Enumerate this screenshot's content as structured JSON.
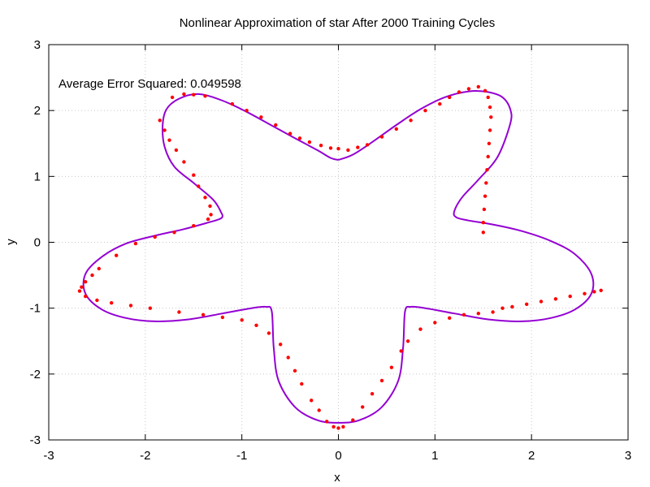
{
  "chart_data": {
    "type": "scatter",
    "title": "Nonlinear Approximation of star After 2000 Training Cycles",
    "xlabel": "x",
    "ylabel": "y",
    "xlim": [
      -3,
      3
    ],
    "ylim": [
      -3,
      3
    ],
    "xticks": [
      -3,
      -2,
      -1,
      0,
      1,
      2,
      3
    ],
    "yticks": [
      -3,
      -2,
      -1,
      0,
      1,
      2,
      3
    ],
    "grid": true,
    "annotation": "Average Error Squared: 0.049598",
    "series": [
      {
        "kind": "line",
        "color": "#9400d3",
        "points": [
          [
            0.0,
            1.25
          ],
          [
            0.15,
            1.33
          ],
          [
            0.35,
            1.52
          ],
          [
            0.6,
            1.78
          ],
          [
            0.85,
            2.02
          ],
          [
            1.1,
            2.2
          ],
          [
            1.35,
            2.29
          ],
          [
            1.55,
            2.28
          ],
          [
            1.7,
            2.2
          ],
          [
            1.78,
            2.02
          ],
          [
            1.78,
            1.8
          ],
          [
            1.65,
            1.3
          ],
          [
            1.45,
            0.95
          ],
          [
            1.28,
            0.68
          ],
          [
            1.2,
            0.47
          ],
          [
            1.22,
            0.38
          ],
          [
            1.35,
            0.33
          ],
          [
            1.6,
            0.27
          ],
          [
            1.9,
            0.17
          ],
          [
            2.2,
            0.02
          ],
          [
            2.45,
            -0.18
          ],
          [
            2.62,
            -0.48
          ],
          [
            2.62,
            -0.78
          ],
          [
            2.45,
            -1.02
          ],
          [
            2.2,
            -1.15
          ],
          [
            1.9,
            -1.2
          ],
          [
            1.55,
            -1.17
          ],
          [
            1.2,
            -1.08
          ],
          [
            0.9,
            -1.0
          ],
          [
            0.75,
            -0.98
          ],
          [
            0.69,
            -1.05
          ],
          [
            0.67,
            -1.6
          ],
          [
            0.62,
            -2.1
          ],
          [
            0.45,
            -2.5
          ],
          [
            0.22,
            -2.7
          ],
          [
            0.0,
            -2.74
          ],
          [
            -0.22,
            -2.7
          ],
          [
            -0.45,
            -2.5
          ],
          [
            -0.62,
            -2.1
          ],
          [
            -0.67,
            -1.6
          ],
          [
            -0.69,
            -1.05
          ],
          [
            -0.75,
            -0.98
          ],
          [
            -0.9,
            -1.0
          ],
          [
            -1.2,
            -1.08
          ],
          [
            -1.55,
            -1.17
          ],
          [
            -1.9,
            -1.2
          ],
          [
            -2.2,
            -1.15
          ],
          [
            -2.45,
            -1.02
          ],
          [
            -2.62,
            -0.78
          ],
          [
            -2.62,
            -0.48
          ],
          [
            -2.45,
            -0.22
          ],
          [
            -2.2,
            -0.02
          ],
          [
            -1.9,
            0.1
          ],
          [
            -1.6,
            0.2
          ],
          [
            -1.35,
            0.3
          ],
          [
            -1.21,
            0.37
          ],
          [
            -1.22,
            0.47
          ],
          [
            -1.3,
            0.65
          ],
          [
            -1.5,
            0.9
          ],
          [
            -1.7,
            1.15
          ],
          [
            -1.8,
            1.45
          ],
          [
            -1.82,
            1.78
          ],
          [
            -1.78,
            2.02
          ],
          [
            -1.65,
            2.18
          ],
          [
            -1.45,
            2.25
          ],
          [
            -1.2,
            2.15
          ],
          [
            -0.95,
            1.98
          ],
          [
            -0.7,
            1.78
          ],
          [
            -0.45,
            1.58
          ],
          [
            -0.22,
            1.4
          ],
          [
            -0.08,
            1.28
          ],
          [
            0.0,
            1.25
          ]
        ]
      },
      {
        "kind": "points",
        "color": "#ff0000",
        "points": [
          [
            -1.72,
            2.2
          ],
          [
            -1.6,
            2.25
          ],
          [
            -1.5,
            2.24
          ],
          [
            -1.38,
            2.22
          ],
          [
            -1.1,
            2.1
          ],
          [
            -0.95,
            2.0
          ],
          [
            -0.8,
            1.9
          ],
          [
            -0.65,
            1.78
          ],
          [
            -0.5,
            1.65
          ],
          [
            -0.4,
            1.58
          ],
          [
            -0.3,
            1.52
          ],
          [
            -0.18,
            1.47
          ],
          [
            -0.08,
            1.43
          ],
          [
            0.0,
            1.42
          ],
          [
            0.1,
            1.4
          ],
          [
            0.2,
            1.44
          ],
          [
            0.3,
            1.48
          ],
          [
            0.45,
            1.6
          ],
          [
            0.6,
            1.72
          ],
          [
            0.75,
            1.85
          ],
          [
            0.9,
            2.0
          ],
          [
            1.05,
            2.1
          ],
          [
            1.15,
            2.2
          ],
          [
            1.25,
            2.28
          ],
          [
            1.35,
            2.33
          ],
          [
            1.45,
            2.36
          ],
          [
            1.52,
            2.3
          ],
          [
            1.55,
            2.2
          ],
          [
            1.57,
            2.05
          ],
          [
            1.58,
            1.9
          ],
          [
            1.57,
            1.7
          ],
          [
            1.56,
            1.5
          ],
          [
            1.55,
            1.3
          ],
          [
            1.54,
            1.1
          ],
          [
            1.53,
            0.9
          ],
          [
            1.52,
            0.7
          ],
          [
            1.51,
            0.5
          ],
          [
            1.5,
            0.3
          ],
          [
            1.5,
            0.15
          ],
          [
            -1.85,
            1.85
          ],
          [
            -1.8,
            1.7
          ],
          [
            -1.75,
            1.55
          ],
          [
            -1.68,
            1.4
          ],
          [
            -1.6,
            1.22
          ],
          [
            -1.5,
            1.02
          ],
          [
            -1.45,
            0.85
          ],
          [
            -1.38,
            0.68
          ],
          [
            -1.33,
            0.55
          ],
          [
            -1.32,
            0.42
          ],
          [
            -1.35,
            0.35
          ],
          [
            -1.5,
            0.25
          ],
          [
            -1.7,
            0.15
          ],
          [
            -1.9,
            0.08
          ],
          [
            -2.1,
            -0.02
          ],
          [
            -2.3,
            -0.2
          ],
          [
            -2.48,
            -0.4
          ],
          [
            -2.55,
            -0.5
          ],
          [
            -2.62,
            -0.6
          ],
          [
            -2.66,
            -0.68
          ],
          [
            -2.68,
            -0.74
          ],
          [
            -2.62,
            -0.82
          ],
          [
            -2.5,
            -0.88
          ],
          [
            -2.35,
            -0.92
          ],
          [
            -2.15,
            -0.96
          ],
          [
            -1.95,
            -1.0
          ],
          [
            -1.65,
            -1.06
          ],
          [
            -1.4,
            -1.1
          ],
          [
            -1.2,
            -1.14
          ],
          [
            -1.0,
            -1.18
          ],
          [
            -0.85,
            -1.26
          ],
          [
            -0.72,
            -1.38
          ],
          [
            -0.6,
            -1.55
          ],
          [
            -0.52,
            -1.75
          ],
          [
            -0.45,
            -1.95
          ],
          [
            -0.38,
            -2.15
          ],
          [
            -0.28,
            -2.4
          ],
          [
            -0.2,
            -2.55
          ],
          [
            -0.12,
            -2.72
          ],
          [
            -0.05,
            -2.8
          ],
          [
            0.0,
            -2.82
          ],
          [
            0.05,
            -2.8
          ],
          [
            0.15,
            -2.7
          ],
          [
            0.25,
            -2.5
          ],
          [
            0.35,
            -2.3
          ],
          [
            0.45,
            -2.1
          ],
          [
            0.55,
            -1.9
          ],
          [
            0.65,
            -1.65
          ],
          [
            0.72,
            -1.5
          ],
          [
            0.85,
            -1.32
          ],
          [
            1.0,
            -1.22
          ],
          [
            1.15,
            -1.15
          ],
          [
            1.3,
            -1.1
          ],
          [
            1.45,
            -1.08
          ],
          [
            1.6,
            -1.06
          ],
          [
            1.7,
            -1.0
          ],
          [
            1.8,
            -0.98
          ],
          [
            1.95,
            -0.94
          ],
          [
            2.1,
            -0.9
          ],
          [
            2.25,
            -0.86
          ],
          [
            2.4,
            -0.82
          ],
          [
            2.55,
            -0.78
          ],
          [
            2.65,
            -0.75
          ],
          [
            2.72,
            -0.73
          ]
        ]
      }
    ]
  }
}
